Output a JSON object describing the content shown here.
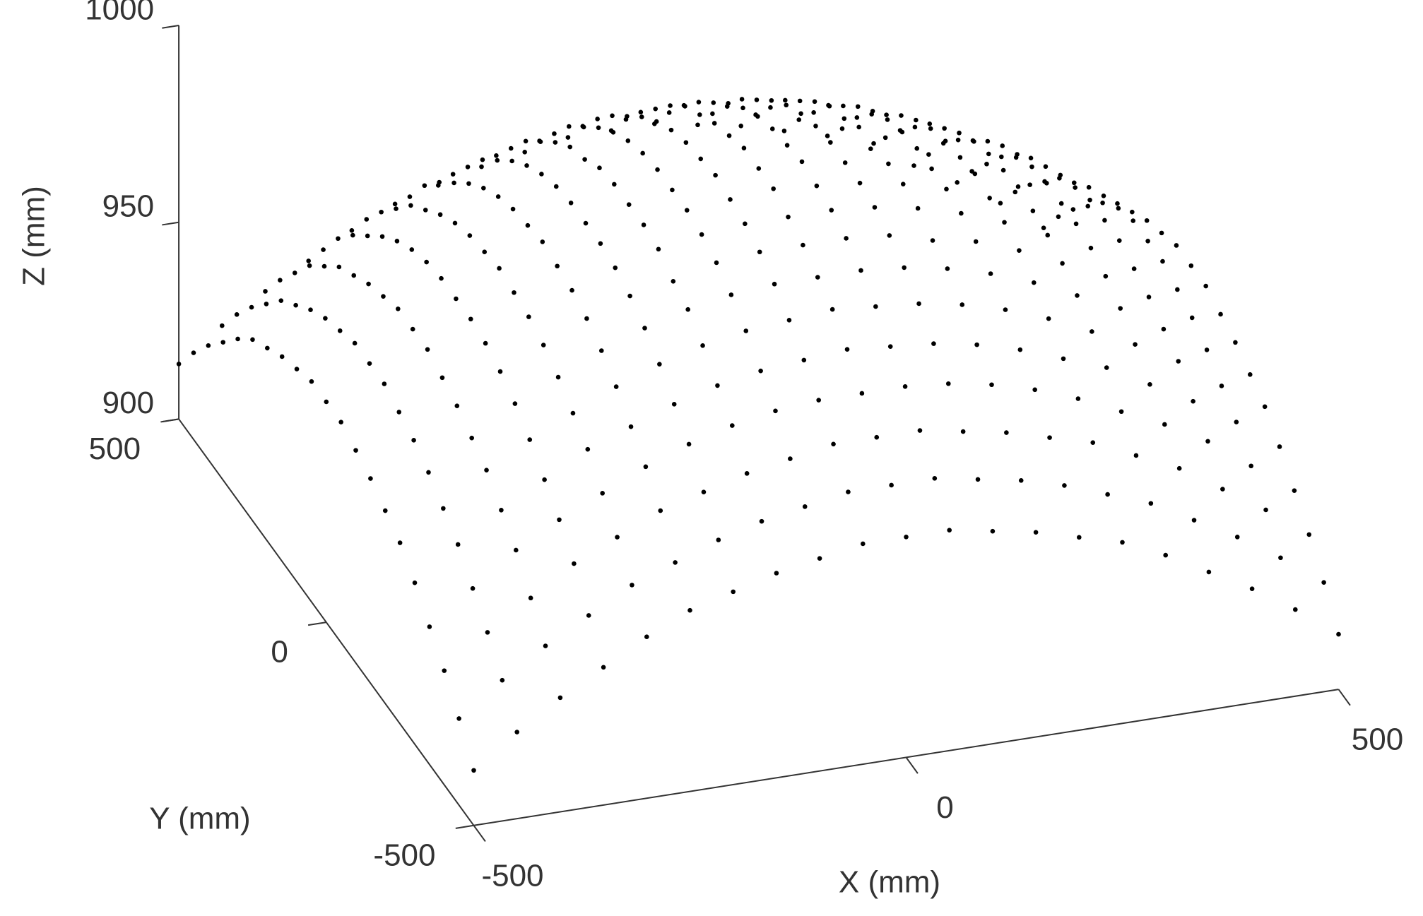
{
  "chart_data": {
    "type": "scatter3d",
    "xlabel": "X (mm)",
    "ylabel": "Y (mm)",
    "zlabel": "Z (mm)",
    "xlim": [
      -500,
      500
    ],
    "ylim": [
      -500,
      500
    ],
    "zlim": [
      900,
      1000
    ],
    "xticks": [
      -500,
      0,
      500
    ],
    "yticks": [
      -500,
      0,
      500
    ],
    "zticks": [
      900,
      950,
      1000
    ],
    "color": "#000000",
    "x": [
      -500,
      -450,
      -400,
      -350,
      -300,
      -250,
      -200,
      -150,
      -100,
      -50,
      0,
      50,
      100,
      150,
      200,
      250,
      300,
      350,
      400,
      450,
      500
    ],
    "y": [
      -500,
      -450,
      -400,
      -350,
      -300,
      -250,
      -200,
      -150,
      -100,
      -50,
      0,
      50,
      100,
      150,
      200,
      250,
      300,
      350,
      400,
      450,
      500
    ],
    "z": [
      [
        914,
        922,
        929,
        935,
        941,
        946,
        949,
        952,
        954,
        956,
        956,
        956,
        954,
        952,
        949,
        946,
        941,
        935,
        929,
        922,
        914
      ],
      [
        922,
        930,
        937,
        943,
        949,
        953,
        957,
        960,
        962,
        964,
        964,
        964,
        962,
        960,
        957,
        953,
        949,
        943,
        937,
        930,
        922
      ],
      [
        929,
        937,
        944,
        951,
        956,
        961,
        964,
        967,
        969,
        971,
        971,
        971,
        969,
        967,
        964,
        961,
        956,
        951,
        944,
        937,
        929
      ],
      [
        935,
        943,
        951,
        957,
        962,
        967,
        971,
        974,
        976,
        977,
        977,
        977,
        976,
        974,
        971,
        967,
        962,
        957,
        951,
        943,
        935
      ],
      [
        941,
        949,
        956,
        962,
        968,
        972,
        976,
        979,
        981,
        982,
        983,
        982,
        981,
        979,
        976,
        972,
        968,
        962,
        956,
        949,
        941
      ],
      [
        946,
        953,
        961,
        967,
        972,
        977,
        981,
        984,
        986,
        987,
        988,
        987,
        986,
        984,
        981,
        977,
        972,
        967,
        961,
        953,
        946
      ],
      [
        949,
        957,
        964,
        971,
        976,
        981,
        985,
        988,
        990,
        991,
        991,
        991,
        990,
        988,
        985,
        981,
        976,
        971,
        964,
        957,
        949
      ],
      [
        952,
        960,
        967,
        974,
        979,
        984,
        988,
        990,
        993,
        994,
        994,
        994,
        993,
        990,
        988,
        984,
        979,
        974,
        967,
        960,
        952
      ],
      [
        954,
        962,
        969,
        976,
        981,
        986,
        990,
        993,
        995,
        996,
        996,
        996,
        995,
        993,
        990,
        986,
        981,
        976,
        969,
        962,
        954
      ],
      [
        956,
        964,
        971,
        977,
        982,
        987,
        991,
        994,
        996,
        997,
        998,
        997,
        996,
        994,
        991,
        987,
        982,
        977,
        971,
        964,
        956
      ],
      [
        956,
        964,
        971,
        977,
        983,
        988,
        991,
        994,
        996,
        998,
        998,
        998,
        996,
        994,
        991,
        988,
        983,
        977,
        971,
        964,
        956
      ],
      [
        956,
        964,
        971,
        977,
        982,
        987,
        991,
        994,
        996,
        997,
        998,
        997,
        996,
        994,
        991,
        987,
        982,
        977,
        971,
        964,
        956
      ],
      [
        954,
        962,
        969,
        976,
        981,
        986,
        990,
        993,
        995,
        996,
        996,
        996,
        995,
        993,
        990,
        986,
        981,
        976,
        969,
        962,
        954
      ],
      [
        952,
        960,
        967,
        974,
        979,
        984,
        988,
        990,
        993,
        994,
        994,
        994,
        993,
        990,
        988,
        984,
        979,
        974,
        967,
        960,
        952
      ],
      [
        949,
        957,
        964,
        971,
        976,
        981,
        985,
        988,
        990,
        991,
        991,
        991,
        990,
        988,
        985,
        981,
        976,
        971,
        964,
        957,
        949
      ],
      [
        946,
        953,
        961,
        967,
        972,
        977,
        981,
        984,
        986,
        987,
        988,
        987,
        986,
        984,
        981,
        977,
        972,
        967,
        961,
        953,
        946
      ],
      [
        941,
        949,
        956,
        962,
        968,
        972,
        976,
        979,
        981,
        982,
        983,
        982,
        981,
        979,
        976,
        972,
        968,
        962,
        956,
        949,
        941
      ],
      [
        935,
        943,
        951,
        957,
        962,
        967,
        971,
        974,
        976,
        977,
        977,
        977,
        976,
        974,
        971,
        967,
        962,
        957,
        951,
        943,
        935
      ],
      [
        929,
        937,
        944,
        951,
        956,
        961,
        964,
        967,
        969,
        971,
        971,
        971,
        969,
        967,
        964,
        961,
        956,
        951,
        944,
        937,
        929
      ],
      [
        922,
        930,
        937,
        943,
        949,
        953,
        957,
        960,
        962,
        964,
        964,
        964,
        962,
        960,
        957,
        953,
        949,
        943,
        937,
        930,
        922
      ],
      [
        914,
        922,
        929,
        935,
        941,
        946,
        949,
        952,
        954,
        956,
        956,
        956,
        954,
        952,
        949,
        946,
        941,
        935,
        929,
        922,
        914
      ]
    ]
  }
}
